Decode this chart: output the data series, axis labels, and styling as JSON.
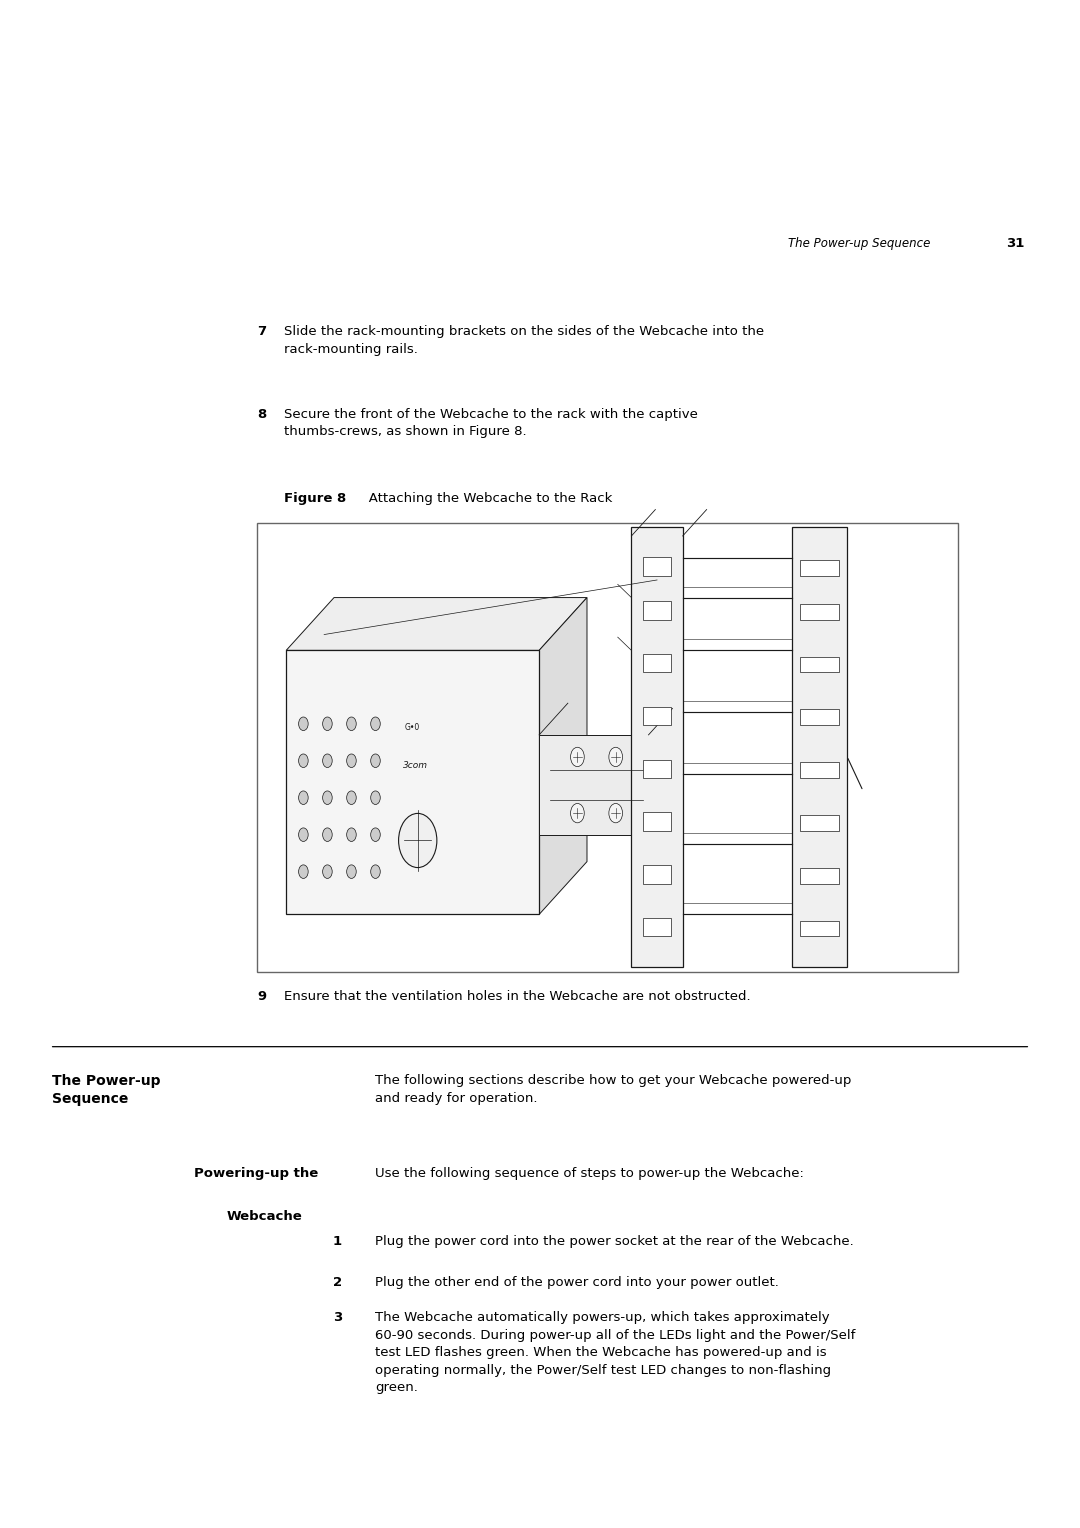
{
  "page_width": 10.8,
  "page_height": 15.28,
  "bg_color": "#ffffff",
  "header_italic": "The Power-up Sequence",
  "header_bold": "31",
  "step7_text": "Slide the rack-mounting brackets on the sides of the Webcache into the\nrack-mounting rails.",
  "step8_text": "Secure the front of the Webcache to the rack with the captive\nthumbs­crews, as shown in Figure 8.",
  "figure_label_bold": "Figure 8",
  "figure_label_normal": "   Attaching the Webcache to the Rack",
  "step9_text": "Ensure that the ventilation holes in the Webcache are not obstructed.",
  "section_heading": "The Power-up\nSequence",
  "section_text": "The following sections describe how to get your Webcache powered-up\nand ready for operation.",
  "sub_heading_line1": "Powering-up the",
  "sub_heading_line2": "Webcache",
  "sub_text": "Use the following sequence of steps to power-up the Webcache:",
  "item1_text": "Plug the power cord into the power socket at the rear of the Webcache.",
  "item2_text": "Plug the other end of the power cord into your power outlet.",
  "item3_text": "The Webcache automatically powers-up, which takes approximately\n60-90 seconds. During power-up all of the LEDs light and the Power/Self\ntest LED flashes green. When the Webcache has powered-up and is\noperating normally, the Power/Self test LED changes to non-flashing\ngreen."
}
